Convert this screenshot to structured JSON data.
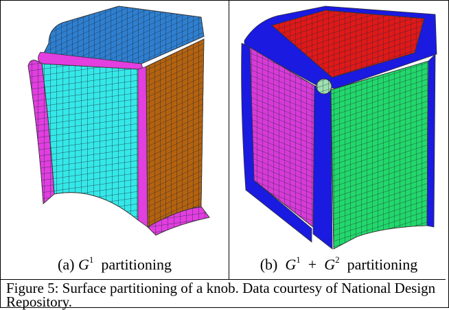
{
  "panels": [
    {
      "label": "(a)",
      "terms": [
        {
          "symbol": "G",
          "superscript": "1"
        }
      ],
      "text": "partitioning"
    },
    {
      "label": "(b)",
      "terms": [
        {
          "symbol": "G",
          "superscript": "1"
        },
        {
          "symbol": "G",
          "superscript": "2"
        }
      ],
      "operator": "+",
      "text": "partitioning"
    }
  ],
  "caption": "Figure 5: Surface partitioning of a knob. Data courtesy of National Design Repository."
}
